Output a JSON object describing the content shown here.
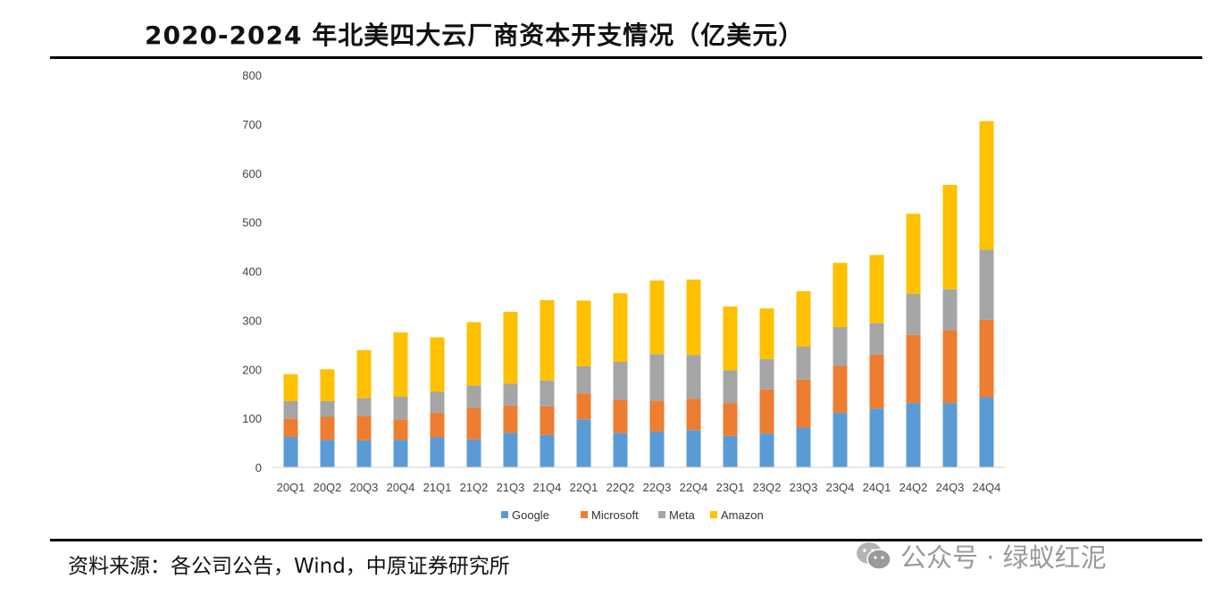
{
  "title": "2020-2024 年北美四大云厂商资本开支情况（亿美元）",
  "source": "资料来源：各公司公告，Wind，中原证券研究所",
  "watermark": {
    "text": "公众号 · 绿蚁红泥",
    "icon": "wechat-icon"
  },
  "chart_data": {
    "type": "bar",
    "stacked": true,
    "categories": [
      "20Q1",
      "20Q2",
      "20Q3",
      "20Q4",
      "21Q1",
      "21Q2",
      "21Q3",
      "21Q4",
      "22Q1",
      "22Q2",
      "22Q3",
      "22Q4",
      "23Q1",
      "23Q2",
      "23Q3",
      "23Q4",
      "24Q1",
      "24Q2",
      "24Q3",
      "24Q4"
    ],
    "series": [
      {
        "name": "Google",
        "color": "#5B9BD5",
        "values": [
          62,
          56,
          55,
          56,
          61,
          57,
          70,
          66,
          98,
          70,
          73,
          76,
          64,
          69,
          81,
          111,
          120,
          131,
          131,
          143
        ]
      },
      {
        "name": "Microsoft",
        "color": "#ED7D31",
        "values": [
          37,
          47,
          49,
          42,
          50,
          64,
          56,
          58,
          53,
          68,
          63,
          64,
          67,
          90,
          98,
          96,
          110,
          139,
          149,
          158
        ]
      },
      {
        "name": "Meta",
        "color": "#A5A5A5",
        "values": [
          36,
          32,
          37,
          46,
          43,
          46,
          45,
          53,
          55,
          77,
          95,
          89,
          67,
          62,
          67,
          79,
          64,
          84,
          83,
          143
        ]
      },
      {
        "name": "Amazon",
        "color": "#FFC000",
        "values": [
          55,
          65,
          98,
          131,
          111,
          129,
          146,
          164,
          134,
          140,
          150,
          154,
          130,
          103,
          113,
          131,
          139,
          163,
          213,
          262
        ]
      }
    ],
    "ylim": [
      0,
      800
    ],
    "yticks": [
      0,
      100,
      200,
      300,
      400,
      500,
      600,
      700,
      800
    ],
    "grid": false,
    "legend": "bottom",
    "xlabel": "",
    "ylabel": ""
  }
}
